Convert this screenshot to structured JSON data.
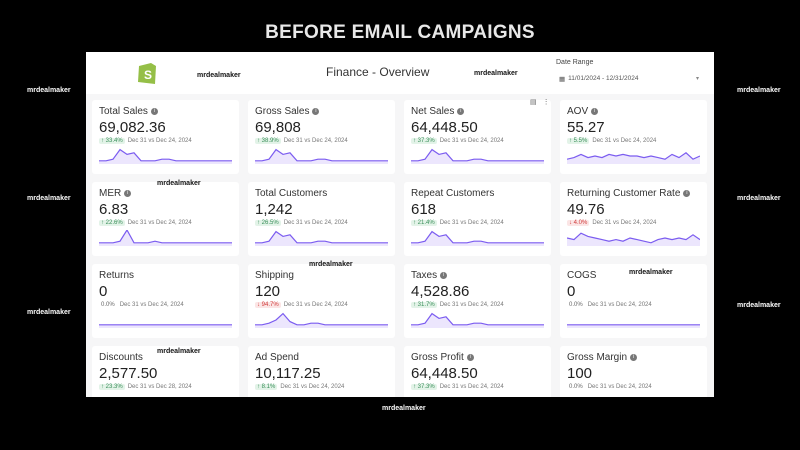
{
  "banner": "BEFORE EMAIL CAMPAIGNS",
  "watermark": "mrdealmaker",
  "header": {
    "title": "Finance - Overview",
    "date_range_label": "Date Range",
    "date_range_value": "11/01/2024 - 12/31/2024"
  },
  "colors": {
    "line": "#7b5cf0",
    "fill": "#ece6fd",
    "logo": "#95bf47"
  },
  "cards": [
    {
      "label": "Total Sales",
      "info": true,
      "value": "69,082.36",
      "delta": "33.4%",
      "dir": "up",
      "compare": "Dec 31 vs Dec 24, 2024",
      "spark": [
        2,
        2,
        3,
        9,
        6,
        7,
        2,
        2,
        2,
        3,
        3,
        2,
        2,
        2,
        2,
        2,
        2,
        2,
        2,
        2
      ]
    },
    {
      "label": "Gross Sales",
      "info": true,
      "value": "69,808",
      "delta": "38.9%",
      "dir": "up",
      "compare": "Dec 31 vs Dec 24, 2024",
      "spark": [
        2,
        2,
        3,
        9,
        6,
        7,
        2,
        2,
        2,
        3,
        3,
        2,
        2,
        2,
        2,
        2,
        2,
        2,
        2,
        2
      ]
    },
    {
      "label": "Net Sales",
      "info": true,
      "value": "64,448.50",
      "delta": "37.3%",
      "dir": "up",
      "compare": "Dec 31 vs Dec 24, 2024",
      "spark": [
        2,
        2,
        3,
        9,
        6,
        7,
        2,
        2,
        2,
        3,
        3,
        2,
        2,
        2,
        2,
        2,
        2,
        2,
        2,
        2
      ]
    },
    {
      "label": "AOV",
      "info": true,
      "value": "55.27",
      "delta": "5.5%",
      "dir": "up",
      "compare": "Dec 31 vs Dec 24, 2024",
      "spark": [
        3,
        4,
        6,
        4,
        5,
        4,
        6,
        5,
        6,
        5,
        5,
        4,
        5,
        4,
        3,
        6,
        4,
        7,
        3,
        5
      ]
    },
    {
      "label": "MER",
      "info": true,
      "value": "6.83",
      "delta": "22.6%",
      "dir": "up",
      "compare": "Dec 31 vs Dec 24, 2024",
      "spark": [
        2,
        2,
        2,
        3,
        10,
        2,
        2,
        2,
        3,
        2,
        2,
        2,
        2,
        2,
        2,
        2,
        2,
        2,
        2,
        2
      ]
    },
    {
      "label": "Total Customers",
      "info": false,
      "value": "1,242",
      "delta": "26.5%",
      "dir": "up",
      "compare": "Dec 31 vs Dec 24, 2024",
      "spark": [
        2,
        2,
        3,
        9,
        6,
        7,
        2,
        2,
        2,
        3,
        3,
        2,
        2,
        2,
        2,
        2,
        2,
        2,
        2,
        2
      ]
    },
    {
      "label": "Repeat Customers",
      "info": false,
      "value": "618",
      "delta": "21.4%",
      "dir": "up",
      "compare": "Dec 31 vs Dec 24, 2024",
      "spark": [
        2,
        2,
        3,
        9,
        6,
        7,
        2,
        2,
        2,
        3,
        3,
        2,
        2,
        2,
        2,
        2,
        2,
        2,
        2,
        2
      ]
    },
    {
      "label": "Returning Customer Rate",
      "info": true,
      "value": "49.76",
      "delta": "4.0%",
      "dir": "down",
      "compare": "Dec 31 vs Dec 24, 2024",
      "spark": [
        5,
        4,
        8,
        6,
        5,
        4,
        3,
        4,
        3,
        5,
        4,
        3,
        2,
        4,
        5,
        4,
        5,
        4,
        7,
        4
      ]
    },
    {
      "label": "Returns",
      "info": false,
      "value": "0",
      "delta": "0.0%",
      "dir": "flat",
      "compare": "Dec 31 vs Dec 24, 2024",
      "spark": [
        2,
        2,
        2,
        2,
        2,
        2,
        2,
        2,
        2,
        2,
        2,
        2,
        2,
        2,
        2,
        2,
        2,
        2,
        2,
        2
      ]
    },
    {
      "label": "Shipping",
      "info": false,
      "value": "120",
      "delta": "94.7%",
      "dir": "down",
      "compare": "Dec 31 vs Dec 24, 2024",
      "spark": [
        2,
        2,
        3,
        5,
        9,
        4,
        2,
        2,
        3,
        3,
        2,
        2,
        2,
        2,
        2,
        2,
        2,
        2,
        2,
        2
      ]
    },
    {
      "label": "Taxes",
      "info": true,
      "value": "4,528.86",
      "delta": "31.7%",
      "dir": "up",
      "compare": "Dec 31 vs Dec 24, 2024",
      "spark": [
        2,
        2,
        3,
        9,
        6,
        7,
        2,
        2,
        2,
        3,
        3,
        2,
        2,
        2,
        2,
        2,
        2,
        2,
        2,
        2
      ]
    },
    {
      "label": "COGS",
      "info": false,
      "value": "0",
      "delta": "0.0%",
      "dir": "flat",
      "compare": "Dec 31 vs Dec 24, 2024",
      "spark": [
        2,
        2,
        2,
        2,
        2,
        2,
        2,
        2,
        2,
        2,
        2,
        2,
        2,
        2,
        2,
        2,
        2,
        2,
        2,
        2
      ]
    },
    {
      "label": "Discounts",
      "info": false,
      "value": "2,577.50",
      "delta": "23.3%",
      "dir": "up",
      "compare": "Dec 31 vs Dec 28, 2024",
      "spark": []
    },
    {
      "label": "Ad Spend",
      "info": false,
      "value": "10,117.25",
      "delta": "8.1%",
      "dir": "up",
      "compare": "Dec 31 vs Dec 24, 2024",
      "spark": []
    },
    {
      "label": "Gross Profit",
      "info": true,
      "value": "64,448.50",
      "delta": "37.3%",
      "dir": "up",
      "compare": "Dec 31 vs Dec 24, 2024",
      "spark": []
    },
    {
      "label": "Gross Margin",
      "info": true,
      "value": "100",
      "delta": "0.0%",
      "dir": "flat",
      "compare": "Dec 31 vs Dec 24, 2024",
      "spark": []
    }
  ]
}
